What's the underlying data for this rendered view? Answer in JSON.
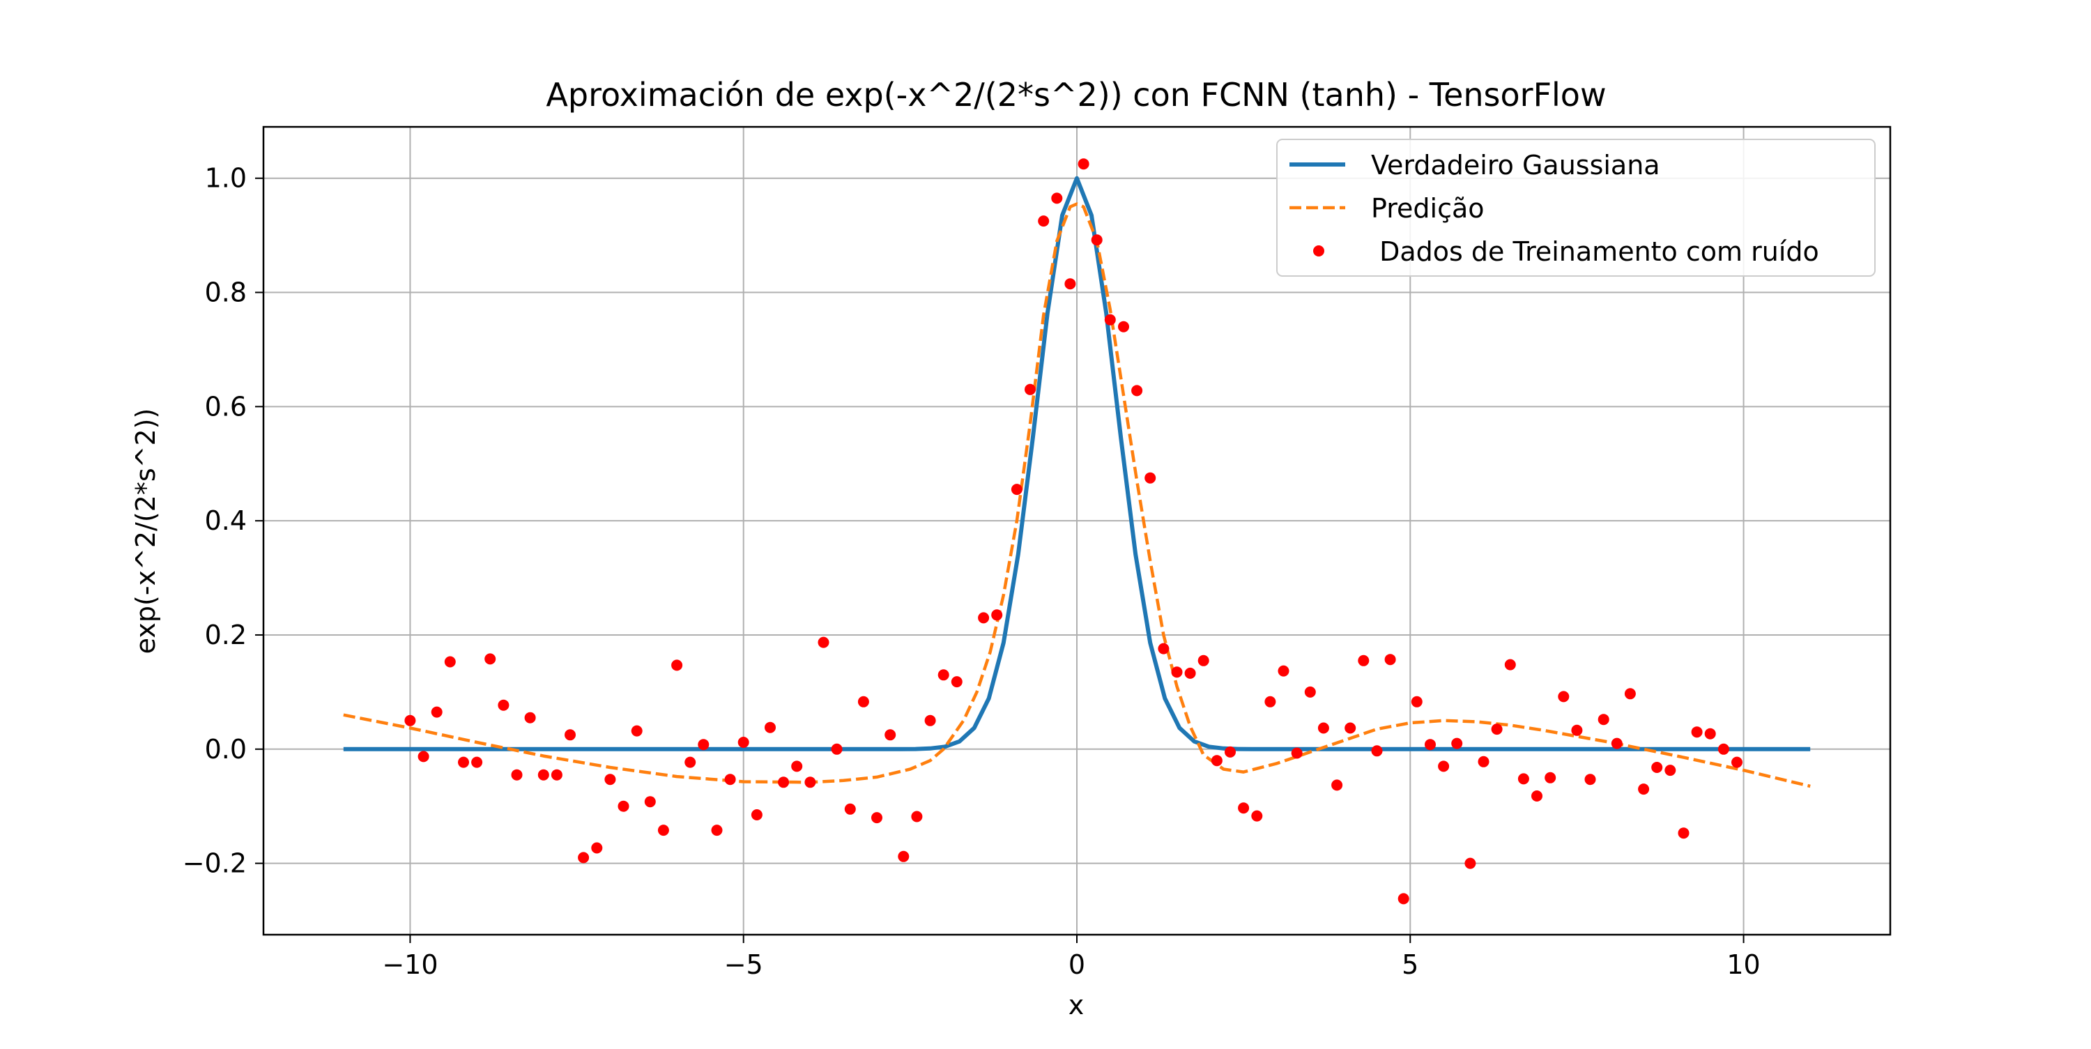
{
  "chart_data": {
    "type": "line",
    "title": "Aproximación de exp(-x^2/(2*s^2)) con FCNN (tanh) - TensorFlow",
    "xlabel": "x",
    "ylabel": "exp(-x^2/(2*s^2))",
    "xlim": [
      -12.2,
      12.2
    ],
    "ylim": [
      -0.325,
      1.09
    ],
    "grid": true,
    "legend_position": "top-right",
    "x_ticks": [
      -10,
      -5,
      0,
      5,
      10
    ],
    "x_tick_labels": [
      "−10",
      "−5",
      "0",
      "5",
      "10"
    ],
    "y_ticks": [
      -0.2,
      0.0,
      0.2,
      0.4,
      0.6,
      0.8,
      1.0
    ],
    "y_tick_labels": [
      "−0.2",
      "0.0",
      "0.2",
      "0.4",
      "0.6",
      "0.8",
      "1.0"
    ],
    "series": [
      {
        "name": "Verdadeiro Gaussiana",
        "kind": "line",
        "style": "solid",
        "color": "#1f77b4",
        "sigma": 0.6,
        "x_range": [
          -11,
          11
        ],
        "n_points": 101
      },
      {
        "name": "Predição",
        "kind": "line",
        "style": "dashed",
        "color": "#ff7f0e",
        "points": [
          [
            -11,
            0.06
          ],
          [
            -10,
            0.037
          ],
          [
            -9,
            0.012
          ],
          [
            -8,
            -0.012
          ],
          [
            -7,
            -0.032
          ],
          [
            -6,
            -0.048
          ],
          [
            -5,
            -0.057
          ],
          [
            -4,
            -0.058
          ],
          [
            -3.5,
            -0.055
          ],
          [
            -3,
            -0.049
          ],
          [
            -2.5,
            -0.035
          ],
          [
            -2.2,
            -0.02
          ],
          [
            -2,
            0.0
          ],
          [
            -1.7,
            0.05
          ],
          [
            -1.5,
            0.1
          ],
          [
            -1.3,
            0.17
          ],
          [
            -1.1,
            0.27
          ],
          [
            -0.9,
            0.4
          ],
          [
            -0.7,
            0.57
          ],
          [
            -0.5,
            0.76
          ],
          [
            -0.3,
            0.89
          ],
          [
            -0.1,
            0.95
          ],
          [
            0.0,
            0.955
          ],
          [
            0.1,
            0.95
          ],
          [
            0.3,
            0.89
          ],
          [
            0.5,
            0.77
          ],
          [
            0.7,
            0.62
          ],
          [
            0.9,
            0.47
          ],
          [
            1.1,
            0.33
          ],
          [
            1.3,
            0.2
          ],
          [
            1.5,
            0.11
          ],
          [
            1.7,
            0.04
          ],
          [
            1.9,
            -0.01
          ],
          [
            2.2,
            -0.035
          ],
          [
            2.5,
            -0.04
          ],
          [
            3,
            -0.025
          ],
          [
            3.5,
            -0.005
          ],
          [
            4,
            0.015
          ],
          [
            4.5,
            0.035
          ],
          [
            5,
            0.046
          ],
          [
            5.5,
            0.05
          ],
          [
            6,
            0.048
          ],
          [
            6.5,
            0.042
          ],
          [
            7,
            0.033
          ],
          [
            8,
            0.012
          ],
          [
            9,
            -0.012
          ],
          [
            10,
            -0.037
          ],
          [
            11,
            -0.065
          ]
        ]
      },
      {
        "name": " Dados de Treinamento com ruído",
        "kind": "scatter",
        "color": "#ff0000",
        "points": [
          [
            -10.0,
            0.05
          ],
          [
            -9.8,
            -0.013
          ],
          [
            -9.6,
            0.065
          ],
          [
            -9.4,
            0.153
          ],
          [
            -9.2,
            -0.023
          ],
          [
            -9.0,
            -0.023
          ],
          [
            -8.8,
            0.158
          ],
          [
            -8.6,
            0.077
          ],
          [
            -8.4,
            -0.045
          ],
          [
            -8.2,
            0.055
          ],
          [
            -8.0,
            -0.045
          ],
          [
            -7.8,
            -0.045
          ],
          [
            -7.6,
            0.025
          ],
          [
            -7.4,
            -0.19
          ],
          [
            -7.2,
            -0.173
          ],
          [
            -7.0,
            -0.053
          ],
          [
            -6.8,
            -0.1
          ],
          [
            -6.6,
            0.032
          ],
          [
            -6.4,
            -0.092
          ],
          [
            -6.2,
            -0.142
          ],
          [
            -6.0,
            0.147
          ],
          [
            -5.8,
            -0.023
          ],
          [
            -5.6,
            0.008
          ],
          [
            -5.4,
            -0.142
          ],
          [
            -5.2,
            -0.053
          ],
          [
            -5.0,
            0.012
          ],
          [
            -4.8,
            -0.115
          ],
          [
            -4.6,
            0.038
          ],
          [
            -4.4,
            -0.058
          ],
          [
            -4.2,
            -0.03
          ],
          [
            -4.0,
            -0.058
          ],
          [
            -3.8,
            0.187
          ],
          [
            -3.6,
            0.0
          ],
          [
            -3.4,
            -0.105
          ],
          [
            -3.2,
            0.083
          ],
          [
            -3.0,
            -0.12
          ],
          [
            -2.8,
            0.025
          ],
          [
            -2.6,
            -0.188
          ],
          [
            -2.4,
            -0.118
          ],
          [
            -2.2,
            0.05
          ],
          [
            -2.0,
            0.13
          ],
          [
            -1.8,
            0.118
          ],
          [
            -1.4,
            0.23
          ],
          [
            -1.2,
            0.235
          ],
          [
            -0.9,
            0.455
          ],
          [
            -0.7,
            0.63
          ],
          [
            -0.5,
            0.925
          ],
          [
            -0.3,
            0.965
          ],
          [
            -0.1,
            0.815
          ],
          [
            0.1,
            1.025
          ],
          [
            0.3,
            0.892
          ],
          [
            0.5,
            0.752
          ],
          [
            0.7,
            0.74
          ],
          [
            0.9,
            0.628
          ],
          [
            1.1,
            0.475
          ],
          [
            1.3,
            0.176
          ],
          [
            1.5,
            0.135
          ],
          [
            1.7,
            0.133
          ],
          [
            1.9,
            0.155
          ],
          [
            2.1,
            -0.02
          ],
          [
            2.3,
            -0.005
          ],
          [
            2.5,
            -0.103
          ],
          [
            2.7,
            -0.117
          ],
          [
            2.9,
            0.083
          ],
          [
            3.1,
            0.137
          ],
          [
            3.3,
            -0.007
          ],
          [
            3.5,
            0.1
          ],
          [
            3.7,
            0.037
          ],
          [
            3.9,
            -0.063
          ],
          [
            4.1,
            0.037
          ],
          [
            4.3,
            0.155
          ],
          [
            4.5,
            -0.003
          ],
          [
            4.7,
            0.157
          ],
          [
            4.9,
            -0.262
          ],
          [
            5.1,
            0.083
          ],
          [
            5.3,
            0.008
          ],
          [
            5.5,
            -0.03
          ],
          [
            5.7,
            0.01
          ],
          [
            5.9,
            -0.2
          ],
          [
            6.1,
            -0.022
          ],
          [
            6.3,
            0.035
          ],
          [
            6.5,
            0.148
          ],
          [
            6.7,
            -0.052
          ],
          [
            6.9,
            -0.082
          ],
          [
            7.1,
            -0.05
          ],
          [
            7.3,
            0.092
          ],
          [
            7.5,
            0.033
          ],
          [
            7.7,
            -0.053
          ],
          [
            7.9,
            0.052
          ],
          [
            8.1,
            0.01
          ],
          [
            8.3,
            0.097
          ],
          [
            8.5,
            -0.07
          ],
          [
            8.7,
            -0.032
          ],
          [
            8.9,
            -0.037
          ],
          [
            9.1,
            -0.147
          ],
          [
            9.3,
            0.03
          ],
          [
            9.5,
            0.027
          ],
          [
            9.7,
            0.0
          ],
          [
            9.9,
            -0.023
          ]
        ]
      }
    ]
  }
}
